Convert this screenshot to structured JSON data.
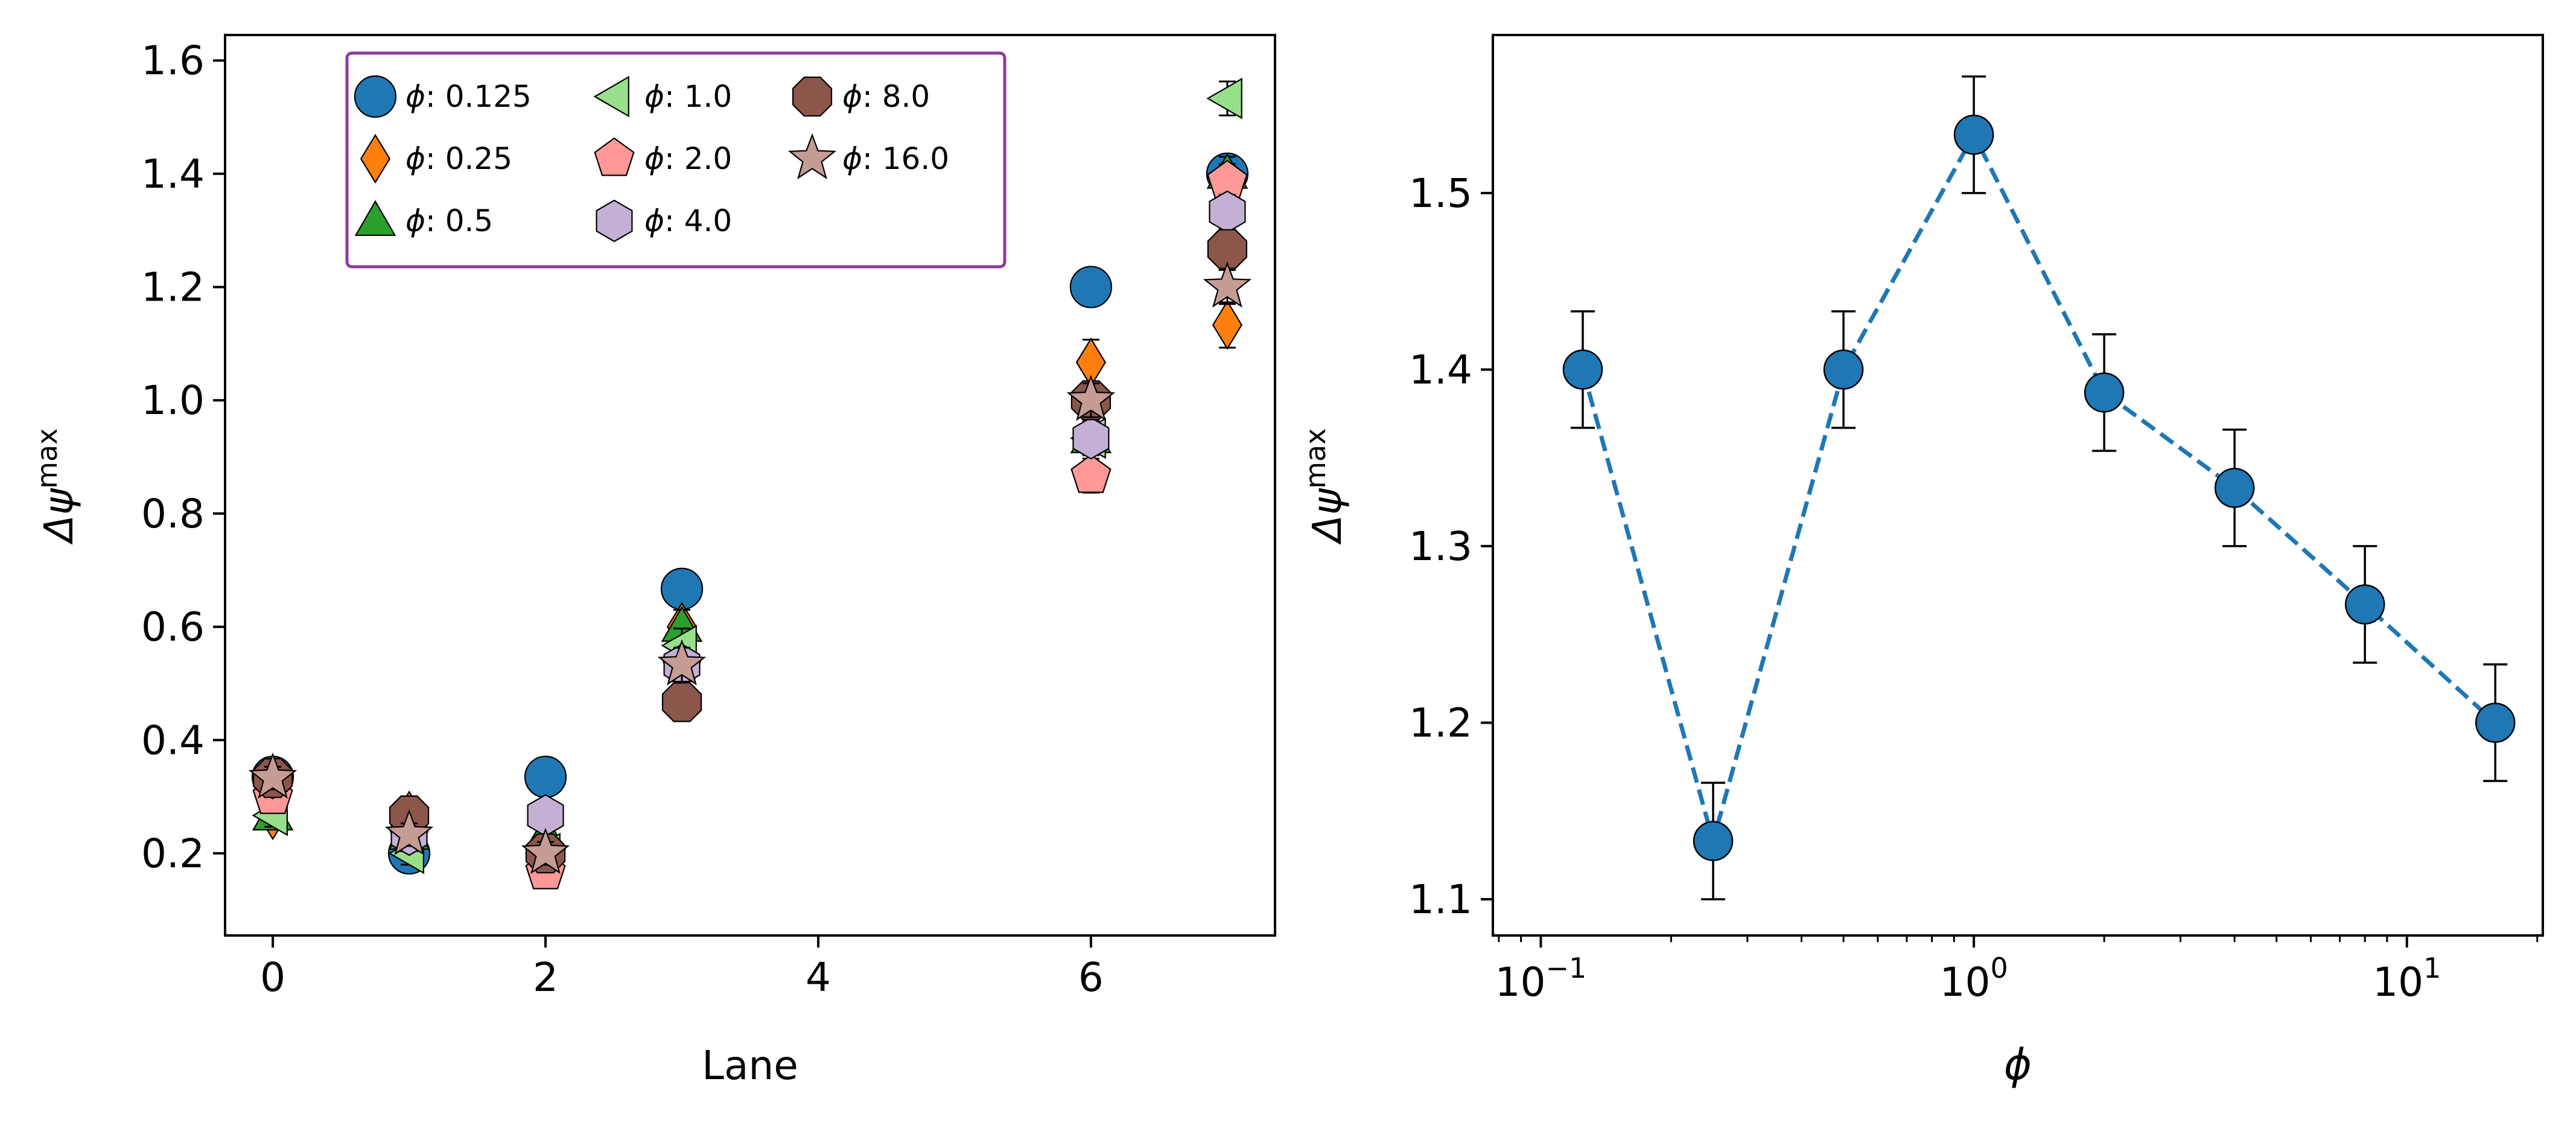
{
  "chart_data": [
    {
      "type": "scatter",
      "title": "",
      "xlabel": "Lane",
      "ylabel": "Δψ",
      "ylabel_sup": "max",
      "xlim": [
        -0.35,
        7.35
      ],
      "ylim": [
        0.055,
        1.645
      ],
      "xticks": [
        0,
        2,
        4,
        6
      ],
      "xtick_labels": [
        "0",
        "2",
        "4",
        "6"
      ],
      "yticks": [
        0.2,
        0.4,
        0.6,
        0.8,
        1.0,
        1.2,
        1.4,
        1.6
      ],
      "ytick_labels": [
        "0.2",
        "0.4",
        "0.6",
        "0.8",
        "1.0",
        "1.2",
        "1.4",
        "1.6"
      ],
      "grid": false,
      "legend_position": "top-center",
      "legend_columns": 3,
      "legend_border_color": "#8e3a9e",
      "series": [
        {
          "name": "0.125",
          "marker": "circle",
          "color": "#1f77b4",
          "x": [
            0,
            1,
            2,
            3,
            6,
            7
          ],
          "y": [
            0.335,
            0.2,
            0.335,
            0.667,
            1.2,
            1.4
          ],
          "err": [
            0.02,
            0.02,
            0.02,
            0.03,
            0.03,
            0.03
          ]
        },
        {
          "name": "0.25",
          "marker": "diamond",
          "color": "#ff7f0e",
          "x": [
            0,
            1,
            2,
            3,
            6,
            7
          ],
          "y": [
            0.267,
            0.267,
            0.2,
            0.6,
            1.067,
            1.133
          ],
          "err": [
            0.02,
            0.03,
            0.02,
            0.03,
            0.04,
            0.04
          ]
        },
        {
          "name": "0.5",
          "marker": "triangle-up",
          "color": "#2ca02c",
          "x": [
            0,
            1,
            2,
            3,
            6,
            7
          ],
          "y": [
            0.267,
            0.233,
            0.233,
            0.6,
            0.933,
            1.4
          ],
          "err": [
            0.02,
            0.02,
            0.02,
            0.03,
            0.03,
            0.03
          ]
        },
        {
          "name": "1.0",
          "marker": "triangle-left",
          "color": "#98df8a",
          "x": [
            0,
            1,
            2,
            3,
            6,
            7
          ],
          "y": [
            0.267,
            0.2,
            0.2,
            0.567,
            0.933,
            1.533
          ],
          "err": [
            0.02,
            0.02,
            0.02,
            0.03,
            0.03,
            0.03
          ]
        },
        {
          "name": "2.0",
          "marker": "pentagon",
          "color": "#ff9896",
          "x": [
            0,
            1,
            2,
            3,
            6,
            7
          ],
          "y": [
            0.3,
            0.233,
            0.167,
            0.533,
            0.867,
            1.387
          ],
          "err": [
            0.02,
            0.02,
            0.02,
            0.03,
            0.03,
            0.03
          ]
        },
        {
          "name": "4.0",
          "marker": "hexagon",
          "color": "#c5b0d5",
          "x": [
            0,
            1,
            2,
            3,
            6,
            7
          ],
          "y": [
            0.333,
            0.233,
            0.267,
            0.533,
            0.933,
            1.333
          ],
          "err": [
            0.02,
            0.02,
            0.02,
            0.03,
            0.03,
            0.03
          ]
        },
        {
          "name": "8.0",
          "marker": "octagon",
          "color": "#8c564b",
          "x": [
            0,
            1,
            2,
            3,
            6,
            7
          ],
          "y": [
            0.333,
            0.267,
            0.2,
            0.467,
            1.0,
            1.267
          ],
          "err": [
            0.02,
            0.03,
            0.02,
            0.03,
            0.03,
            0.03
          ]
        },
        {
          "name": "16.0",
          "marker": "star",
          "color": "#c49c94",
          "x": [
            0,
            1,
            2,
            3,
            6,
            7
          ],
          "y": [
            0.333,
            0.233,
            0.2,
            0.533,
            1.0,
            1.2
          ],
          "err": [
            0.02,
            0.02,
            0.02,
            0.03,
            0.03,
            0.03
          ]
        }
      ]
    },
    {
      "type": "line",
      "title": "",
      "xlabel": "ϕ",
      "ylabel": "Δψ",
      "ylabel_sup": "max",
      "xscale": "log",
      "xlim": [
        0.0775,
        20.6
      ],
      "ylim": [
        1.0795,
        1.5895
      ],
      "xticks": [
        0.1,
        1,
        10
      ],
      "xtick_labels": [
        {
          "base": "10",
          "exp": "−1"
        },
        {
          "base": "10",
          "exp": "0"
        },
        {
          "base": "10",
          "exp": "1"
        }
      ],
      "yticks": [
        1.1,
        1.2,
        1.3,
        1.4,
        1.5
      ],
      "ytick_labels": [
        "1.1",
        "1.2",
        "1.3",
        "1.4",
        "1.5"
      ],
      "grid": false,
      "line_style": "dashed",
      "color": "#1f77b4",
      "x": [
        0.125,
        0.25,
        0.5,
        1.0,
        2.0,
        4.0,
        8.0,
        16.0
      ],
      "y": [
        1.4,
        1.133,
        1.4,
        1.533,
        1.387,
        1.333,
        1.267,
        1.2
      ],
      "err": [
        0.033,
        0.033,
        0.033,
        0.033,
        0.033,
        0.033,
        0.033,
        0.033
      ]
    }
  ]
}
